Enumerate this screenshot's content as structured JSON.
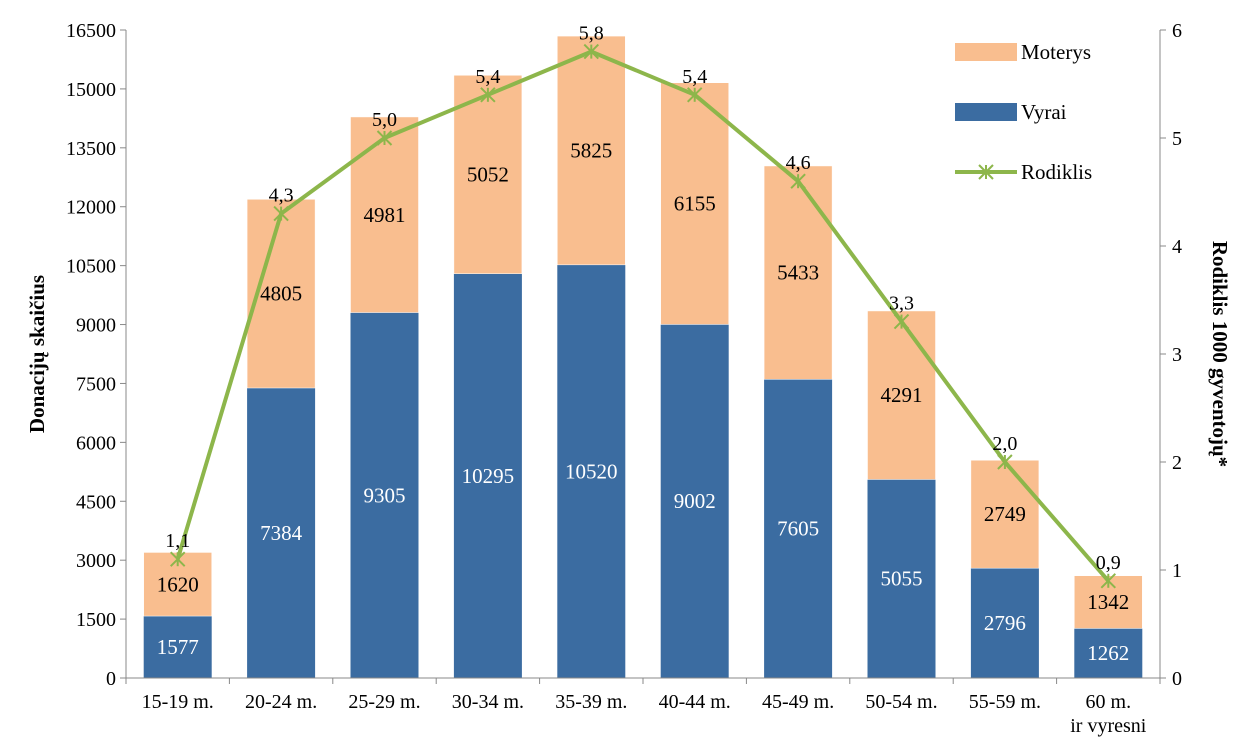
{
  "chart_data": {
    "type": "bar",
    "stacked": true,
    "secondary_line": true,
    "categories": [
      "15-19 m.",
      "20-24 m.",
      "25-29 m.",
      "30-34 m.",
      "35-39 m.",
      "40-44 m.",
      "45-49 m.",
      "50-54 m.",
      "55-59 m.",
      "60 m. ir vyresni"
    ],
    "series": [
      {
        "name": "Vyrai",
        "type": "bar",
        "color": "#3b6ca1",
        "values": [
          1577,
          7384,
          9305,
          10295,
          10520,
          9002,
          7605,
          5055,
          2796,
          1262
        ]
      },
      {
        "name": "Moterys",
        "type": "bar",
        "color": "#f9be8f",
        "values": [
          1620,
          4805,
          4981,
          5052,
          5825,
          6155,
          5433,
          4291,
          2749,
          1342
        ]
      },
      {
        "name": "Rodiklis",
        "type": "line",
        "axis": "right",
        "color": "#8db64b",
        "values": [
          1.1,
          4.3,
          5.0,
          5.4,
          5.8,
          5.4,
          4.6,
          3.3,
          2.0,
          0.9
        ]
      }
    ],
    "rate_labels": [
      "1,1",
      "4,3",
      "5,0",
      "5,4",
      "5,8",
      "5,4",
      "4,6",
      "3,3",
      "2,0",
      "0,9"
    ],
    "ylabel": "Donacijų skaičius",
    "y2label": "Rodiklis 1000 gyventojų*",
    "ylim": [
      0,
      16500
    ],
    "yticks": [
      "0",
      "1500",
      "3000",
      "4500",
      "6000",
      "7500",
      "9000",
      "10500",
      "12000",
      "13500",
      "15000",
      "16500"
    ],
    "y2lim": [
      0,
      6
    ],
    "y2ticks": [
      "0",
      "1",
      "2",
      "3",
      "4",
      "5",
      "6"
    ],
    "legend": [
      "Moterys",
      "Vyrai",
      "Rodiklis"
    ],
    "legend_position": "top-right",
    "grid": false
  }
}
